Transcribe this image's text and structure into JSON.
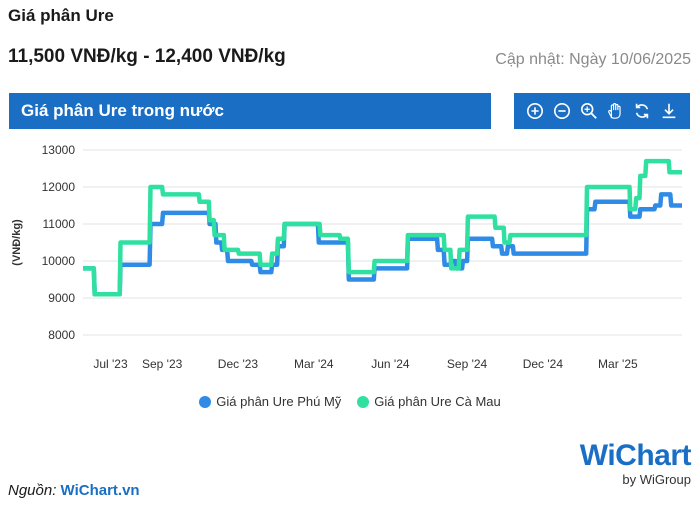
{
  "header": {
    "title": "Giá phân Ure",
    "price_range": "11,500 VNĐ/kg - 12,400 VNĐ/kg",
    "updated": "Cập nhật: Ngày 10/06/2025"
  },
  "panel": {
    "title": "Giá phân Ure trong nước"
  },
  "toolbar": {
    "icons": [
      "zoom-in-icon",
      "zoom-out-icon",
      "magnifier-icon",
      "hand-pan-icon",
      "reset-icon",
      "download-icon"
    ]
  },
  "footer": {
    "source_label": "Nguồn:",
    "source_name": "WiChart.vn",
    "logo_text": "WiChart",
    "logo_sub": "by WiGroup"
  },
  "colors": {
    "brand": "#1a6fc4",
    "series_phu_my": "#2f8be6",
    "series_ca_mau": "#2fe0a0"
  },
  "chart_data": {
    "type": "line",
    "title": "",
    "ylabel": "(VNĐ/kg)",
    "xlabel": "",
    "ylim": [
      8000,
      13000
    ],
    "yticks": [
      8000,
      9000,
      10000,
      11000,
      12000,
      13000
    ],
    "xticks": [
      {
        "x": "2023-07",
        "label": "Jul '23"
      },
      {
        "x": "2023-09",
        "label": "Sep '23"
      },
      {
        "x": "2023-12",
        "label": "Dec '23"
      },
      {
        "x": "2024-03",
        "label": "Mar '24"
      },
      {
        "x": "2024-06",
        "label": "Jun '24"
      },
      {
        "x": "2024-09",
        "label": "Sep '24"
      },
      {
        "x": "2024-12",
        "label": "Dec '24"
      },
      {
        "x": "2025-03",
        "label": "Mar '25"
      }
    ],
    "xlim": [
      "2023-06-22",
      "2025-06-10"
    ],
    "grid": true,
    "legend": "bottom",
    "series": [
      {
        "name": "Giá phân Ure Phú Mỹ",
        "points": [
          [
            "2023-06-22",
            9800
          ],
          [
            "2023-07-05",
            9800
          ],
          [
            "2023-07-06",
            9100
          ],
          [
            "2023-08-05",
            9100
          ],
          [
            "2023-08-06",
            9900
          ],
          [
            "2023-09-10",
            9900
          ],
          [
            "2023-09-11",
            11000
          ],
          [
            "2023-09-25",
            11000
          ],
          [
            "2023-09-26",
            11300
          ],
          [
            "2023-11-20",
            11300
          ],
          [
            "2023-11-21",
            11000
          ],
          [
            "2023-11-28",
            11000
          ],
          [
            "2023-11-29",
            10500
          ],
          [
            "2023-12-05",
            10500
          ],
          [
            "2023-12-06",
            10300
          ],
          [
            "2023-12-12",
            10300
          ],
          [
            "2023-12-13",
            10000
          ],
          [
            "2024-01-10",
            10000
          ],
          [
            "2024-01-11",
            9900
          ],
          [
            "2024-01-20",
            9900
          ],
          [
            "2024-01-21",
            9700
          ],
          [
            "2024-02-03",
            9700
          ],
          [
            "2024-02-04",
            9900
          ],
          [
            "2024-02-10",
            9900
          ],
          [
            "2024-02-11",
            10400
          ],
          [
            "2024-02-18",
            10400
          ],
          [
            "2024-02-19",
            11000
          ],
          [
            "2024-03-30",
            11000
          ],
          [
            "2024-03-31",
            10500
          ],
          [
            "2024-05-05",
            10500
          ],
          [
            "2024-05-06",
            9500
          ],
          [
            "2024-06-05",
            9500
          ],
          [
            "2024-06-06",
            9800
          ],
          [
            "2024-07-15",
            9800
          ],
          [
            "2024-07-16",
            10600
          ],
          [
            "2024-08-20",
            10600
          ],
          [
            "2024-08-21",
            10300
          ],
          [
            "2024-08-28",
            10300
          ],
          [
            "2024-08-29",
            9900
          ],
          [
            "2024-09-05",
            9900
          ],
          [
            "2024-09-06",
            10000
          ],
          [
            "2024-09-11",
            10000
          ],
          [
            "2024-09-12",
            9800
          ],
          [
            "2024-09-19",
            9800
          ],
          [
            "2024-09-20",
            10000
          ],
          [
            "2024-09-25",
            10000
          ],
          [
            "2024-09-26",
            10600
          ],
          [
            "2024-10-25",
            10600
          ],
          [
            "2024-10-26",
            10400
          ],
          [
            "2024-11-05",
            10400
          ],
          [
            "2024-11-06",
            10200
          ],
          [
            "2024-11-12",
            10200
          ],
          [
            "2024-11-13",
            10400
          ],
          [
            "2024-11-19",
            10400
          ],
          [
            "2024-11-20",
            10200
          ],
          [
            "2025-02-15",
            10200
          ],
          [
            "2025-02-16",
            11400
          ],
          [
            "2025-02-25",
            11400
          ],
          [
            "2025-02-26",
            11600
          ],
          [
            "2025-04-08",
            11600
          ],
          [
            "2025-04-09",
            11200
          ],
          [
            "2025-04-20",
            11200
          ],
          [
            "2025-04-21",
            11400
          ],
          [
            "2025-05-08",
            11400
          ],
          [
            "2025-05-09",
            11500
          ],
          [
            "2025-05-15",
            11500
          ],
          [
            "2025-05-16",
            11800
          ],
          [
            "2025-05-27",
            11800
          ],
          [
            "2025-05-28",
            11500
          ],
          [
            "2025-06-10",
            11500
          ]
        ]
      },
      {
        "name": "Giá phân Ure Cà Mau",
        "points": [
          [
            "2023-06-22",
            9800
          ],
          [
            "2023-07-05",
            9800
          ],
          [
            "2023-07-06",
            9100
          ],
          [
            "2023-08-05",
            9100
          ],
          [
            "2023-08-06",
            10500
          ],
          [
            "2023-09-10",
            10500
          ],
          [
            "2023-09-11",
            12000
          ],
          [
            "2023-09-25",
            12000
          ],
          [
            "2023-09-26",
            11800
          ],
          [
            "2023-11-08",
            11800
          ],
          [
            "2023-11-09",
            11600
          ],
          [
            "2023-11-20",
            11600
          ],
          [
            "2023-11-21",
            11100
          ],
          [
            "2023-11-26",
            11100
          ],
          [
            "2023-11-27",
            10700
          ],
          [
            "2023-12-08",
            10700
          ],
          [
            "2023-12-09",
            10300
          ],
          [
            "2023-12-25",
            10300
          ],
          [
            "2023-12-26",
            10200
          ],
          [
            "2024-01-20",
            10200
          ],
          [
            "2024-01-21",
            9900
          ],
          [
            "2024-02-03",
            9900
          ],
          [
            "2024-02-04",
            10200
          ],
          [
            "2024-02-10",
            10200
          ],
          [
            "2024-02-11",
            10600
          ],
          [
            "2024-02-18",
            10600
          ],
          [
            "2024-02-19",
            11000
          ],
          [
            "2024-04-01",
            11000
          ],
          [
            "2024-04-02",
            10700
          ],
          [
            "2024-04-25",
            10700
          ],
          [
            "2024-04-26",
            10600
          ],
          [
            "2024-05-05",
            10600
          ],
          [
            "2024-05-06",
            9700
          ],
          [
            "2024-06-05",
            9700
          ],
          [
            "2024-06-06",
            10000
          ],
          [
            "2024-07-15",
            10000
          ],
          [
            "2024-07-16",
            10700
          ],
          [
            "2024-08-28",
            10700
          ],
          [
            "2024-08-29",
            10300
          ],
          [
            "2024-09-05",
            10300
          ],
          [
            "2024-09-06",
            9800
          ],
          [
            "2024-09-15",
            9800
          ],
          [
            "2024-09-16",
            10300
          ],
          [
            "2024-09-25",
            10300
          ],
          [
            "2024-09-26",
            11200
          ],
          [
            "2024-10-28",
            11200
          ],
          [
            "2024-10-29",
            10900
          ],
          [
            "2024-11-08",
            10900
          ],
          [
            "2024-11-09",
            10500
          ],
          [
            "2024-11-15",
            10500
          ],
          [
            "2024-11-16",
            10700
          ],
          [
            "2025-02-15",
            10700
          ],
          [
            "2025-02-16",
            12000
          ],
          [
            "2025-04-08",
            12000
          ],
          [
            "2025-04-09",
            11400
          ],
          [
            "2025-04-15",
            11400
          ],
          [
            "2025-04-16",
            11700
          ],
          [
            "2025-04-20",
            11700
          ],
          [
            "2025-04-21",
            12300
          ],
          [
            "2025-04-27",
            12300
          ],
          [
            "2025-04-28",
            12700
          ],
          [
            "2025-05-25",
            12700
          ],
          [
            "2025-05-26",
            12400
          ],
          [
            "2025-06-10",
            12400
          ]
        ]
      }
    ]
  }
}
